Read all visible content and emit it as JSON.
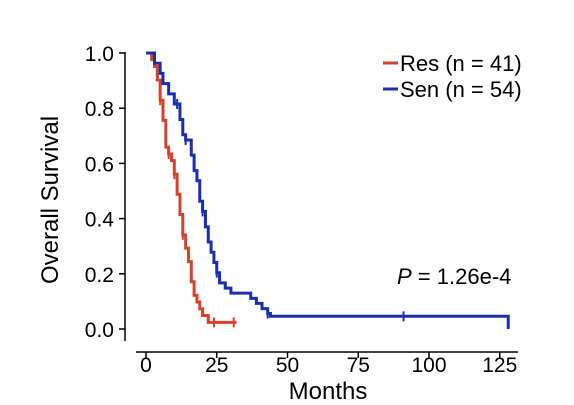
{
  "chart_data": {
    "type": "line",
    "subtype": "kaplan-meier",
    "xlabel": "Months",
    "ylabel": "Overall Survival",
    "xlim": [
      0,
      130
    ],
    "ylim": [
      0,
      1.0
    ],
    "x_ticks": [
      0,
      25,
      50,
      75,
      100,
      125
    ],
    "y_ticks": [
      0.0,
      0.2,
      0.4,
      0.6,
      0.8,
      1.0
    ],
    "y_tick_labels": [
      "0.0",
      "0.2",
      "0.4",
      "0.6",
      "0.8",
      "1.0"
    ],
    "x_tick_labels": [
      "0",
      "25",
      "50",
      "75",
      "100",
      "125"
    ],
    "legend": {
      "position": "top-right"
    },
    "annotation": {
      "p_label": "P",
      "p_value_text": " = 1.26e-4"
    },
    "series": [
      {
        "name": "Res (n = 41)",
        "color": "#d2432f",
        "steps": [
          [
            0,
            1.0
          ],
          [
            2,
            0.976
          ],
          [
            3,
            0.951
          ],
          [
            4,
            0.902
          ],
          [
            5,
            0.829
          ],
          [
            6,
            0.756
          ],
          [
            7,
            0.659
          ],
          [
            8,
            0.634
          ],
          [
            9,
            0.61
          ],
          [
            10,
            0.561
          ],
          [
            11,
            0.488
          ],
          [
            12,
            0.415
          ],
          [
            13,
            0.341
          ],
          [
            14,
            0.293
          ],
          [
            15,
            0.244
          ],
          [
            16,
            0.171
          ],
          [
            17,
            0.122
          ],
          [
            18,
            0.098
          ],
          [
            19,
            0.073
          ],
          [
            20,
            0.049
          ],
          [
            22,
            0.024
          ]
        ],
        "end_x": 32,
        "censored": [
          [
            5,
            0.829
          ],
          [
            8,
            0.634
          ],
          [
            10,
            0.561
          ],
          [
            13,
            0.341
          ],
          [
            24,
            0.024
          ],
          [
            31,
            0.024
          ]
        ]
      },
      {
        "name": "Sen (n = 54)",
        "color": "#1a2fb0",
        "steps": [
          [
            0,
            1.0
          ],
          [
            3,
            0.963
          ],
          [
            5,
            0.926
          ],
          [
            6,
            0.889
          ],
          [
            8,
            0.852
          ],
          [
            10,
            0.815
          ],
          [
            12,
            0.759
          ],
          [
            13,
            0.704
          ],
          [
            14,
            0.685
          ],
          [
            16,
            0.63
          ],
          [
            17,
            0.574
          ],
          [
            18,
            0.537
          ],
          [
            19,
            0.463
          ],
          [
            20,
            0.426
          ],
          [
            21,
            0.37
          ],
          [
            22,
            0.315
          ],
          [
            23,
            0.278
          ],
          [
            24,
            0.241
          ],
          [
            25,
            0.204
          ],
          [
            26,
            0.167
          ],
          [
            28,
            0.148
          ],
          [
            30,
            0.13
          ],
          [
            37,
            0.111
          ],
          [
            39,
            0.093
          ],
          [
            41,
            0.074
          ],
          [
            43,
            0.056
          ],
          [
            44,
            0.046
          ]
        ],
        "end_x": 128,
        "end_y": 0.0,
        "censored": [
          [
            11,
            0.815
          ],
          [
            14,
            0.685
          ],
          [
            20,
            0.426
          ],
          [
            25,
            0.204
          ],
          [
            43,
            0.056
          ],
          [
            91,
            0.046
          ]
        ]
      }
    ]
  }
}
